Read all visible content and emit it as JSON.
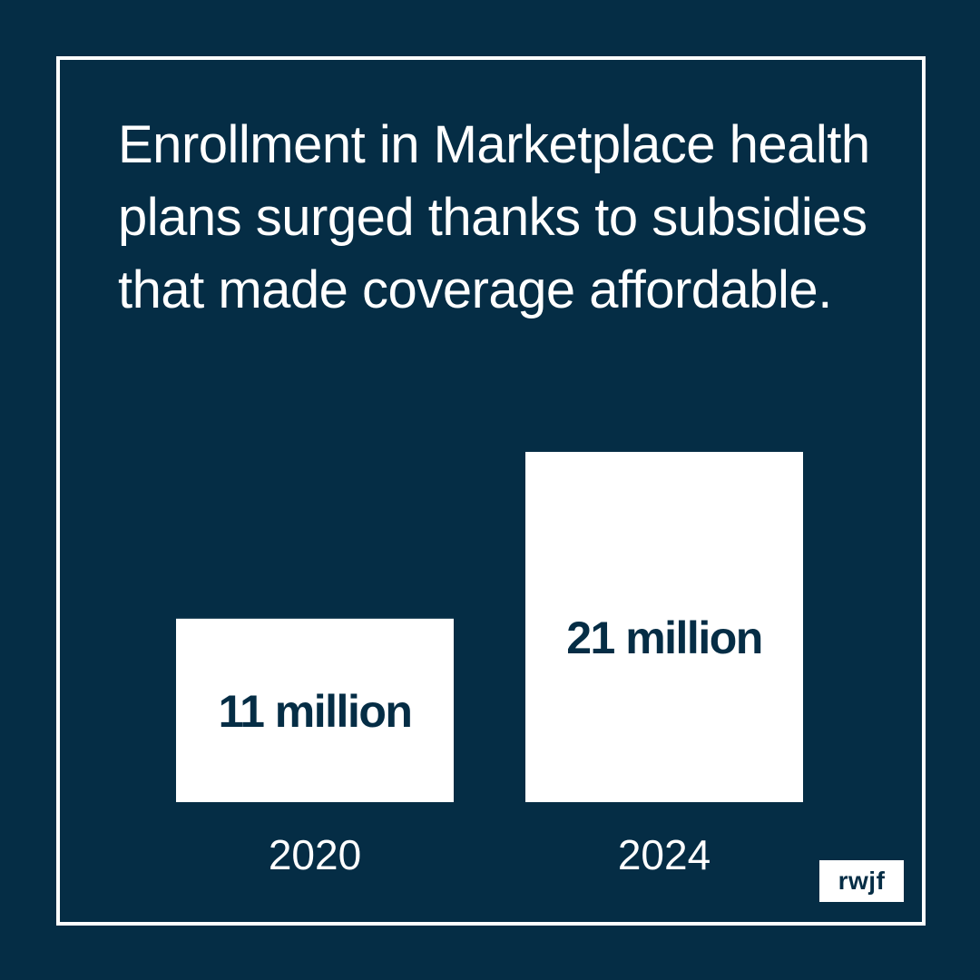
{
  "headline": "Enrollment in Marketplace health plans surged thanks to subsidies that made coverage affordable.",
  "logo": "rwjf",
  "colors": {
    "background": "#052d45",
    "bar": "#ffffff",
    "bar_text": "#052d45",
    "text": "#ffffff"
  },
  "chart_data": {
    "type": "bar",
    "categories": [
      "2020",
      "2024"
    ],
    "values": [
      11,
      21
    ],
    "data_labels": [
      "11 million",
      "21 million"
    ],
    "title": "",
    "xlabel": "",
    "ylabel": "",
    "ylim": [
      0,
      21
    ],
    "grid": false,
    "legend": "none"
  }
}
